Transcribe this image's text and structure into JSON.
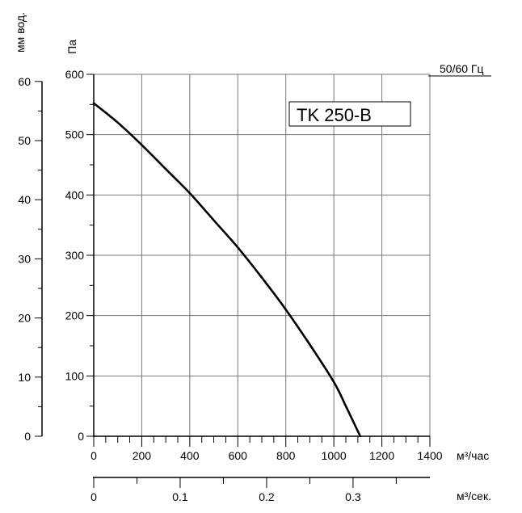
{
  "chart_data": {
    "type": "line",
    "title": "",
    "model_label": "TK 250-B",
    "frequency_label": "50/60 Гц",
    "grid": true,
    "x_axis_primary": {
      "label": "м³/час",
      "range": [
        0,
        1400
      ],
      "ticks": [
        0,
        200,
        400,
        600,
        800,
        1000,
        1200,
        1400
      ],
      "tick_labels": [
        "0",
        "200",
        "400",
        "600",
        "800",
        "1000",
        "1200",
        "1400"
      ],
      "minor_step": 50
    },
    "x_axis_secondary": {
      "label": "м³/сек.",
      "range": [
        0,
        0.3889
      ],
      "ticks": [
        0,
        0.1,
        0.2,
        0.3
      ],
      "tick_labels": [
        "0",
        "0.1",
        "0.2",
        "0.3"
      ],
      "minor_step": 0.05
    },
    "y_axis_primary": {
      "label": "Па",
      "range": [
        0,
        600
      ],
      "ticks": [
        0,
        100,
        200,
        300,
        400,
        500,
        600
      ],
      "tick_labels": [
        "0",
        "100",
        "200",
        "300",
        "400",
        "500",
        "600"
      ],
      "minor_step": 50
    },
    "y_axis_secondary": {
      "label": "мм вод.",
      "range": [
        0,
        61.2
      ],
      "ticks": [
        0,
        10,
        20,
        30,
        40,
        50,
        60
      ],
      "tick_labels": [
        "0",
        "10",
        "20",
        "30",
        "40",
        "50",
        "60"
      ],
      "minor_step": 5
    },
    "series": [
      {
        "x": [
          0,
          100,
          200,
          300,
          400,
          500,
          600,
          700,
          800,
          900,
          1000,
          1050,
          1110
        ],
        "y": [
          552,
          520,
          483,
          443,
          403,
          358,
          313,
          263,
          210,
          152,
          90,
          50,
          0
        ]
      }
    ]
  }
}
